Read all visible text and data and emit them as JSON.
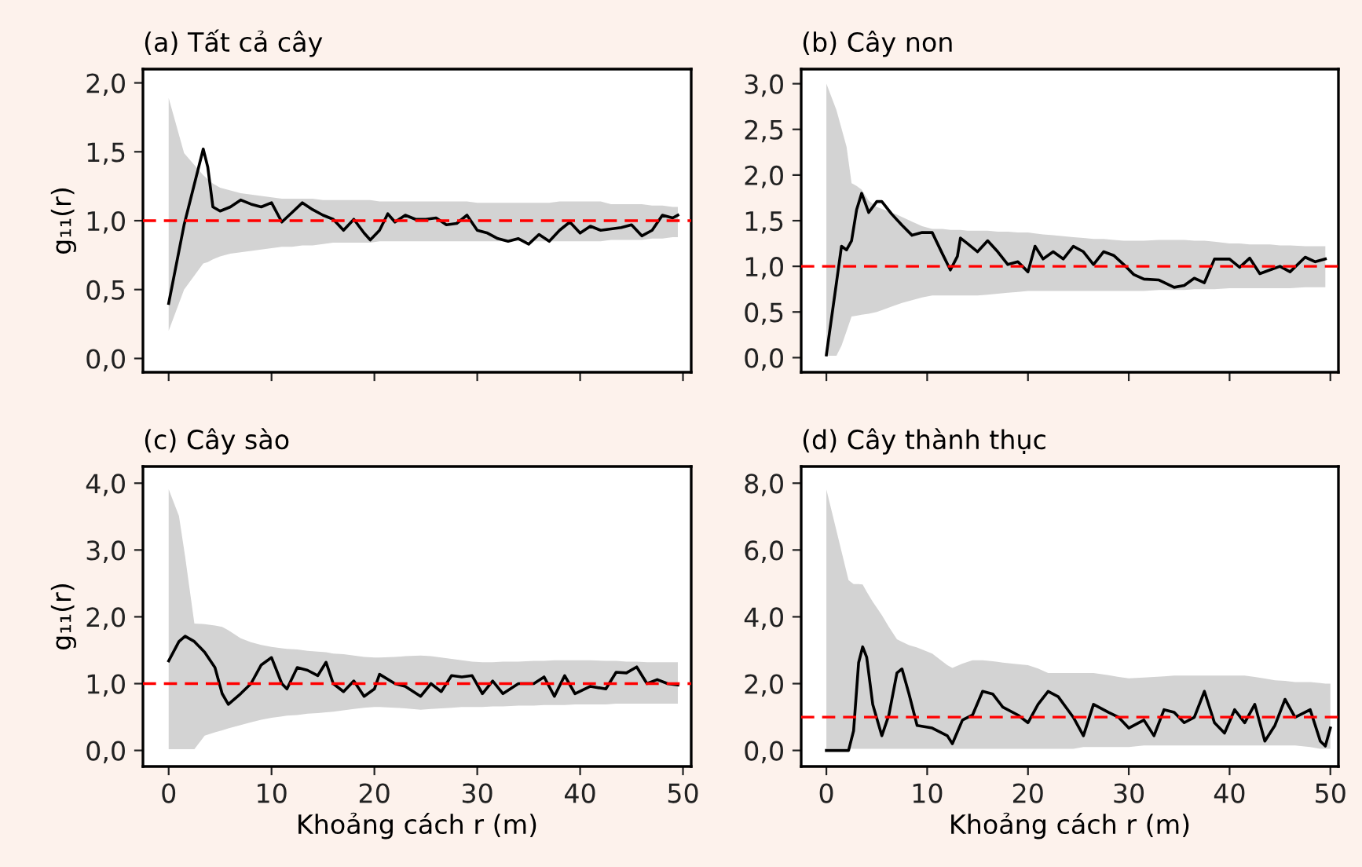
{
  "chart_data": [
    {
      "type": "line",
      "title": "(a) Tất cả cây",
      "ylabel": "g₁₁(r)",
      "tick_labels": "y",
      "xlim": [
        -2.5,
        50.8
      ],
      "ylim": [
        -0.1,
        2.1
      ],
      "xticks": [
        {
          "value": 0,
          "label": null
        },
        {
          "value": 10,
          "label": null
        },
        {
          "value": 20,
          "label": null
        },
        {
          "value": 30,
          "label": null
        },
        {
          "value": 40,
          "label": null
        },
        {
          "value": 50,
          "label": null
        }
      ],
      "yticks": [
        {
          "value": 0,
          "label": "0,0"
        },
        {
          "value": 0.5,
          "label": "0,5"
        },
        {
          "value": 1,
          "label": "1,0"
        },
        {
          "value": 1.5,
          "label": "1,5"
        },
        {
          "value": 2,
          "label": "2,0"
        }
      ],
      "ref_lines": [
        {
          "axis": "y",
          "value": 1,
          "color": "#ff0000",
          "line_style": "dashed"
        }
      ],
      "series": [
        {
          "color": "#000000",
          "x": [
            0,
            1.5,
            3.36,
            3.8,
            4.3,
            5,
            6,
            7,
            8,
            9,
            10,
            11,
            12,
            13,
            14,
            15,
            16,
            17,
            18,
            19,
            19.6,
            20.5,
            21.3,
            22,
            23,
            24,
            25,
            26,
            27,
            28,
            29,
            30,
            31,
            32,
            33,
            34,
            35,
            36,
            37,
            38,
            39,
            40,
            41,
            42,
            43,
            44,
            45,
            46,
            47,
            48,
            49,
            49.5
          ],
          "values": [
            0.4,
            0.97,
            1.52,
            1.39,
            1.1,
            1.07,
            1.1,
            1.15,
            1.12,
            1.1,
            1.13,
            0.99,
            1.06,
            1.13,
            1.08,
            1.04,
            1.01,
            0.93,
            1.01,
            0.91,
            0.86,
            0.93,
            1.05,
            0.99,
            1.04,
            1.01,
            1.01,
            1.02,
            0.97,
            0.98,
            1.04,
            0.93,
            0.91,
            0.87,
            0.85,
            0.87,
            0.83,
            0.9,
            0.85,
            0.93,
            0.99,
            0.91,
            0.96,
            0.93,
            0.94,
            0.95,
            0.97,
            0.89,
            0.93,
            1.04,
            1.02,
            1.04
          ],
          "upper": [
            1.89,
            1.49,
            1.33,
            1.3,
            1.27,
            1.24,
            1.22,
            1.2,
            1.19,
            1.18,
            1.17,
            1.16,
            1.16,
            1.16,
            1.16,
            1.15,
            1.15,
            1.15,
            1.15,
            1.15,
            1.15,
            1.14,
            1.14,
            1.14,
            1.14,
            1.14,
            1.14,
            1.14,
            1.14,
            1.14,
            1.14,
            1.13,
            1.13,
            1.13,
            1.13,
            1.13,
            1.13,
            1.13,
            1.13,
            1.14,
            1.14,
            1.14,
            1.14,
            1.14,
            1.12,
            1.12,
            1.12,
            1.12,
            1.11,
            1.11,
            1.1,
            1.1
          ],
          "lower": [
            0.2,
            0.5,
            0.69,
            0.7,
            0.72,
            0.74,
            0.76,
            0.77,
            0.78,
            0.79,
            0.8,
            0.81,
            0.81,
            0.82,
            0.82,
            0.83,
            0.84,
            0.84,
            0.84,
            0.84,
            0.84,
            0.85,
            0.85,
            0.85,
            0.85,
            0.85,
            0.85,
            0.85,
            0.85,
            0.85,
            0.85,
            0.85,
            0.85,
            0.85,
            0.85,
            0.85,
            0.85,
            0.85,
            0.85,
            0.85,
            0.85,
            0.85,
            0.85,
            0.85,
            0.86,
            0.86,
            0.86,
            0.86,
            0.87,
            0.87,
            0.88,
            0.88
          ]
        }
      ]
    },
    {
      "type": "line",
      "title": "(b) Cây non",
      "tick_labels": "y",
      "xlim": [
        -2.5,
        50.8
      ],
      "ylim": [
        -0.16,
        3.16
      ],
      "xticks": [
        {
          "value": 0,
          "label": null
        },
        {
          "value": 10,
          "label": null
        },
        {
          "value": 20,
          "label": null
        },
        {
          "value": 30,
          "label": null
        },
        {
          "value": 40,
          "label": null
        },
        {
          "value": 50,
          "label": null
        }
      ],
      "yticks": [
        {
          "value": 0,
          "label": "0,0"
        },
        {
          "value": 0.5,
          "label": "0,5"
        },
        {
          "value": 1,
          "label": "1,0"
        },
        {
          "value": 1.5,
          "label": "1,5"
        },
        {
          "value": 2,
          "label": "2,0"
        },
        {
          "value": 2.5,
          "label": "2,5"
        },
        {
          "value": 3,
          "label": "3,0"
        }
      ],
      "ref_lines": [
        {
          "axis": "y",
          "value": 1,
          "color": "#ff0000",
          "line_style": "dashed"
        }
      ],
      "series": [
        {
          "color": "#000000",
          "x": [
            0,
            1,
            1.5,
            2,
            2.5,
            3,
            3.5,
            4.2,
            5,
            5.5,
            6.5,
            7.5,
            8.5,
            9.5,
            10.5,
            11.5,
            12.3,
            13,
            13.3,
            14,
            15,
            16,
            17,
            18,
            19,
            20,
            20.7,
            21.5,
            22.5,
            23.5,
            24.5,
            25.5,
            26.5,
            27.5,
            28.5,
            29.5,
            30.5,
            31.5,
            33,
            34.5,
            35.5,
            36.5,
            37.5,
            38.5,
            40,
            41,
            42,
            43,
            44,
            45,
            46,
            47.5,
            48.5,
            49.5
          ],
          "values": [
            0.03,
            0.82,
            1.22,
            1.18,
            1.28,
            1.62,
            1.8,
            1.59,
            1.71,
            1.71,
            1.57,
            1.45,
            1.34,
            1.37,
            1.37,
            1.14,
            0.96,
            1.11,
            1.31,
            1.25,
            1.16,
            1.28,
            1.16,
            1.02,
            1.05,
            0.94,
            1.22,
            1.08,
            1.16,
            1.08,
            1.22,
            1.16,
            1.02,
            1.16,
            1.12,
            1.02,
            0.91,
            0.86,
            0.85,
            0.77,
            0.79,
            0.87,
            0.82,
            1.08,
            1.08,
            0.99,
            1.09,
            0.92,
            0.96,
            1.0,
            0.94,
            1.1,
            1.05,
            1.08
          ],
          "upper": [
            3.0,
            2.71,
            2.51,
            2.31,
            1.91,
            1.88,
            1.84,
            1.72,
            1.65,
            1.63,
            1.59,
            1.54,
            1.49,
            1.44,
            1.41,
            1.41,
            1.4,
            1.4,
            1.4,
            1.39,
            1.39,
            1.39,
            1.38,
            1.38,
            1.37,
            1.37,
            1.36,
            1.35,
            1.34,
            1.33,
            1.32,
            1.31,
            1.3,
            1.3,
            1.29,
            1.28,
            1.28,
            1.28,
            1.29,
            1.29,
            1.29,
            1.28,
            1.28,
            1.27,
            1.25,
            1.25,
            1.24,
            1.24,
            1.24,
            1.23,
            1.23,
            1.22,
            1.22,
            1.22
          ],
          "lower": [
            0.02,
            0.02,
            0.13,
            0.29,
            0.45,
            0.46,
            0.47,
            0.48,
            0.5,
            0.52,
            0.56,
            0.6,
            0.63,
            0.66,
            0.68,
            0.68,
            0.68,
            0.68,
            0.68,
            0.68,
            0.68,
            0.69,
            0.7,
            0.71,
            0.72,
            0.73,
            0.73,
            0.73,
            0.73,
            0.73,
            0.73,
            0.73,
            0.73,
            0.73,
            0.73,
            0.73,
            0.73,
            0.73,
            0.74,
            0.74,
            0.74,
            0.75,
            0.75,
            0.75,
            0.76,
            0.76,
            0.76,
            0.76,
            0.76,
            0.76,
            0.76,
            0.77,
            0.77,
            0.77
          ]
        }
      ]
    },
    {
      "type": "line",
      "title": "(c) Cây sào",
      "ylabel": "g₁₁(r)",
      "xlabel": "Khoảng cách r (m)",
      "xlim": [
        -2.5,
        50.8
      ],
      "ylim": [
        -0.24,
        4.25
      ],
      "xticks": [
        0,
        10,
        20,
        30,
        40,
        50
      ],
      "yticks": [
        {
          "value": 0,
          "label": "0,0"
        },
        {
          "value": 1,
          "label": "1,0"
        },
        {
          "value": 2,
          "label": "2,0"
        },
        {
          "value": 3,
          "label": "3,0"
        },
        {
          "value": 4,
          "label": "4,0"
        }
      ],
      "ref_lines": [
        {
          "axis": "y",
          "value": 1,
          "color": "#ff0000",
          "line_style": "dashed"
        }
      ],
      "series": [
        {
          "color": "#000000",
          "x": [
            0,
            1,
            1.6,
            2.5,
            3.5,
            4.5,
            5.2,
            5.8,
            7,
            8,
            9,
            10,
            11,
            11.5,
            12.5,
            13.5,
            14.5,
            15.3,
            16,
            17,
            18,
            19,
            20,
            20.5,
            22,
            23,
            24.5,
            25.5,
            26.5,
            27.5,
            28.5,
            29.5,
            30.5,
            31.5,
            32.5,
            34,
            35.5,
            36.5,
            37.5,
            38.5,
            39.5,
            41,
            42.5,
            43.5,
            44.5,
            45.5,
            46.5,
            47.5,
            48.5,
            49.5
          ],
          "values": [
            1.34,
            1.63,
            1.71,
            1.63,
            1.47,
            1.24,
            0.85,
            0.69,
            0.85,
            1.0,
            1.28,
            1.39,
            1.0,
            0.92,
            1.24,
            1.2,
            1.12,
            1.32,
            1.0,
            0.88,
            1.04,
            0.81,
            0.92,
            1.14,
            1.0,
            0.96,
            0.81,
            1.0,
            0.88,
            1.12,
            1.1,
            1.12,
            0.85,
            1.04,
            0.85,
            1.0,
            1.0,
            1.1,
            0.81,
            1.12,
            0.85,
            0.96,
            0.92,
            1.17,
            1.16,
            1.25,
            1.0,
            1.06,
            1.0,
            0.98
          ],
          "upper": [
            3.91,
            3.51,
            2.9,
            1.9,
            1.89,
            1.87,
            1.85,
            1.8,
            1.68,
            1.62,
            1.58,
            1.55,
            1.53,
            1.52,
            1.51,
            1.49,
            1.48,
            1.47,
            1.45,
            1.44,
            1.42,
            1.4,
            1.39,
            1.39,
            1.4,
            1.41,
            1.42,
            1.41,
            1.39,
            1.37,
            1.35,
            1.33,
            1.32,
            1.32,
            1.33,
            1.33,
            1.34,
            1.34,
            1.35,
            1.35,
            1.35,
            1.35,
            1.34,
            1.34,
            1.33,
            1.33,
            1.32,
            1.32,
            1.32,
            1.32
          ],
          "lower": [
            0.02,
            0.02,
            0.02,
            0.02,
            0.22,
            0.27,
            0.3,
            0.33,
            0.38,
            0.42,
            0.46,
            0.49,
            0.51,
            0.52,
            0.53,
            0.55,
            0.56,
            0.57,
            0.58,
            0.6,
            0.62,
            0.64,
            0.65,
            0.65,
            0.64,
            0.63,
            0.61,
            0.62,
            0.63,
            0.64,
            0.65,
            0.65,
            0.65,
            0.66,
            0.66,
            0.67,
            0.67,
            0.68,
            0.68,
            0.68,
            0.69,
            0.69,
            0.69,
            0.7,
            0.7,
            0.7,
            0.7,
            0.7,
            0.7,
            0.7
          ]
        }
      ]
    },
    {
      "type": "line",
      "title": "(d) Cây thành thục",
      "xlabel": "Khoảng cách r (m)",
      "xlim": [
        -2.5,
        50.8
      ],
      "ylim": [
        -0.48,
        8.5
      ],
      "xticks": [
        0,
        10,
        20,
        30,
        40,
        50
      ],
      "yticks": [
        {
          "value": 0,
          "label": "0,0"
        },
        {
          "value": 2,
          "label": "2,0"
        },
        {
          "value": 4,
          "label": "4,0"
        },
        {
          "value": 6,
          "label": "6,0"
        },
        {
          "value": 8,
          "label": "8,0"
        }
      ],
      "ref_lines": [
        {
          "axis": "y",
          "value": 1,
          "color": "#ff0000",
          "line_style": "dashed"
        }
      ],
      "series": [
        {
          "color": "#000000",
          "x": [
            0,
            2.2,
            2.7,
            3.2,
            3.6,
            4,
            4.6,
            5.5,
            6.2,
            7,
            7.5,
            8.2,
            9,
            10.5,
            12,
            12.5,
            13.5,
            14.5,
            15.5,
            16.5,
            17.5,
            19,
            20,
            21,
            22,
            23,
            24.5,
            25.5,
            26.5,
            28,
            29,
            30,
            31.5,
            32.5,
            33.5,
            34.5,
            35.5,
            36.5,
            37.5,
            38.5,
            39.5,
            40.5,
            41.5,
            42.5,
            43.5,
            44.5,
            45.5,
            46.5,
            48,
            49,
            49.5,
            50
          ],
          "values": [
            0,
            0,
            0.59,
            2.63,
            3.1,
            2.79,
            1.38,
            0.44,
            1.06,
            2.32,
            2.44,
            1.69,
            0.75,
            0.67,
            0.44,
            0.2,
            0.91,
            1.06,
            1.77,
            1.69,
            1.3,
            1.06,
            0.83,
            1.38,
            1.77,
            1.61,
            0.99,
            0.44,
            1.38,
            1.14,
            0.99,
            0.67,
            0.91,
            0.44,
            1.22,
            1.14,
            0.83,
            0.99,
            1.77,
            0.83,
            0.52,
            1.22,
            0.83,
            1.38,
            0.28,
            0.75,
            1.53,
            0.99,
            1.22,
            0.28,
            0.13,
            0.67
          ],
          "upper": [
            7.81,
            5.1,
            4.98,
            4.98,
            4.97,
            4.75,
            4.45,
            4.05,
            3.7,
            3.33,
            3.25,
            3.15,
            3.08,
            2.9,
            2.55,
            2.47,
            2.6,
            2.7,
            2.7,
            2.67,
            2.63,
            2.58,
            2.55,
            2.45,
            2.32,
            2.32,
            2.32,
            2.32,
            2.32,
            2.25,
            2.2,
            2.16,
            2.18,
            2.2,
            2.22,
            2.24,
            2.24,
            2.24,
            2.24,
            2.24,
            2.24,
            2.24,
            2.24,
            2.2,
            2.15,
            2.1,
            2.08,
            2.05,
            2.05,
            2.02,
            2.0,
            2.0
          ],
          "lower": [
            0.05,
            0.05,
            0.05,
            0.05,
            0.05,
            0.05,
            0.05,
            0.05,
            0.05,
            0.05,
            0.05,
            0.05,
            0.05,
            0.05,
            0.05,
            0.05,
            0.05,
            0.05,
            0.05,
            0.05,
            0.05,
            0.05,
            0.05,
            0.05,
            0.05,
            0.05,
            0.05,
            0.1,
            0.1,
            0.1,
            0.1,
            0.1,
            0.15,
            0.15,
            0.15,
            0.15,
            0.15,
            0.15,
            0.15,
            0.15,
            0.15,
            0.15,
            0.15,
            0.15,
            0.15,
            0.15,
            0.15,
            0.15,
            0.1,
            0.05,
            0.05,
            0.05
          ]
        }
      ]
    }
  ]
}
